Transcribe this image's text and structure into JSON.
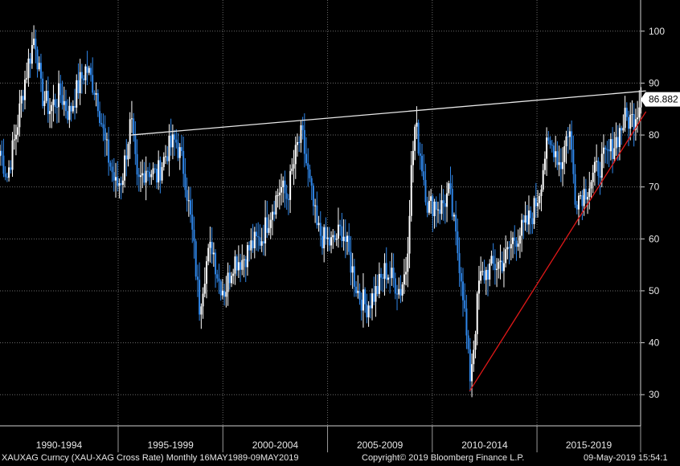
{
  "footer": {
    "security": "XAUXAG Curncy (XAU-XAG Cross Rate)  Monthly 16MAY1989-09MAY2019",
    "copyright": "Copyright© 2019 Bloomberg Finance L.P.",
    "timestamp": "09-May-2019 15:54:1"
  },
  "colors": {
    "background": "#000000",
    "grid": "#6b6b6b",
    "up_candle": "#ffffff",
    "down_candle": "#2f86e8",
    "resistance_line": "#e8e8e8",
    "support_line": "#e01818",
    "last_price_box": "#ffffff"
  },
  "chart_data": {
    "type": "candlestick",
    "title": "",
    "frequency": "Monthly",
    "xlabel": "",
    "ylabel": "",
    "ylim": [
      24,
      106
    ],
    "y_ticks": [
      30,
      40,
      50,
      60,
      70,
      80,
      90,
      100
    ],
    "y_tick_labels": [
      "30",
      "40",
      "50",
      "60",
      "70",
      "80",
      "90",
      "100"
    ],
    "x_range": [
      1989.37,
      2019.35
    ],
    "x_period_labels": [
      "1990-1994",
      "1995-1999",
      "2000-2004",
      "2005-2009",
      "2010-2014",
      "2015-2019"
    ],
    "x_period_boundaries": [
      1994.9,
      1999.8,
      2004.7,
      2009.6,
      2014.5,
      2019.35
    ],
    "last_price": 86.882,
    "last_price_label": "86.882",
    "anchors": [
      [
        1989.37,
        77
      ],
      [
        1989.7,
        72
      ],
      [
        1990.1,
        80
      ],
      [
        1990.5,
        90
      ],
      [
        1991.0,
        99.5
      ],
      [
        1991.3,
        88
      ],
      [
        1991.7,
        85
      ],
      [
        1992.2,
        88
      ],
      [
        1992.6,
        84
      ],
      [
        1993.0,
        89
      ],
      [
        1993.4,
        93
      ],
      [
        1993.9,
        88
      ],
      [
        1994.3,
        78
      ],
      [
        1994.8,
        70
      ],
      [
        1995.1,
        72
      ],
      [
        1995.5,
        83
      ],
      [
        1995.8,
        70
      ],
      [
        1996.2,
        74
      ],
      [
        1996.7,
        72
      ],
      [
        1997.2,
        77
      ],
      [
        1997.6,
        79
      ],
      [
        1998.0,
        73
      ],
      [
        1998.4,
        60
      ],
      [
        1998.7,
        47
      ],
      [
        1999.0,
        55
      ],
      [
        1999.3,
        59
      ],
      [
        1999.6,
        52
      ],
      [
        1999.9,
        50
      ],
      [
        2000.3,
        56
      ],
      [
        2000.7,
        56
      ],
      [
        2001.2,
        59
      ],
      [
        2001.6,
        60
      ],
      [
        2002.1,
        66
      ],
      [
        2002.5,
        70
      ],
      [
        2002.8,
        68
      ],
      [
        2003.3,
        78
      ],
      [
        2003.5,
        80
      ],
      [
        2003.8,
        72
      ],
      [
        2004.2,
        62
      ],
      [
        2004.5,
        60
      ],
      [
        2004.9,
        59
      ],
      [
        2005.4,
        62
      ],
      [
        2005.8,
        55
      ],
      [
        2006.1,
        50
      ],
      [
        2006.5,
        47
      ],
      [
        2007.0,
        50
      ],
      [
        2007.4,
        54
      ],
      [
        2007.8,
        52
      ],
      [
        2008.1,
        50
      ],
      [
        2008.4,
        55
      ],
      [
        2008.6,
        72
      ],
      [
        2008.8,
        82
      ],
      [
        2009.1,
        75
      ],
      [
        2009.4,
        66
      ],
      [
        2009.7,
        67
      ],
      [
        2010.0,
        66
      ],
      [
        2010.4,
        69
      ],
      [
        2010.7,
        60
      ],
      [
        2011.0,
        52
      ],
      [
        2011.35,
        33
      ],
      [
        2011.55,
        40
      ],
      [
        2011.8,
        52
      ],
      [
        2012.2,
        54
      ],
      [
        2012.6,
        55
      ],
      [
        2013.0,
        56
      ],
      [
        2013.4,
        60
      ],
      [
        2013.9,
        62
      ],
      [
        2014.3,
        65
      ],
      [
        2014.6,
        69
      ],
      [
        2014.9,
        77
      ],
      [
        2015.3,
        78
      ],
      [
        2015.6,
        74
      ],
      [
        2016.0,
        82
      ],
      [
        2016.3,
        68
      ],
      [
        2016.7,
        69
      ],
      [
        2017.0,
        71
      ],
      [
        2017.4,
        74
      ],
      [
        2017.8,
        76
      ],
      [
        2018.2,
        79
      ],
      [
        2018.6,
        83
      ],
      [
        2019.0,
        83
      ],
      [
        2019.35,
        86.882
      ]
    ],
    "annotations": {
      "resistance_line": {
        "from": [
          1995.5,
          80
        ],
        "to": [
          2019.6,
          88.5
        ]
      },
      "support_line": {
        "from": [
          2011.35,
          30.7
        ],
        "to": [
          2019.6,
          84.5
        ]
      }
    }
  }
}
